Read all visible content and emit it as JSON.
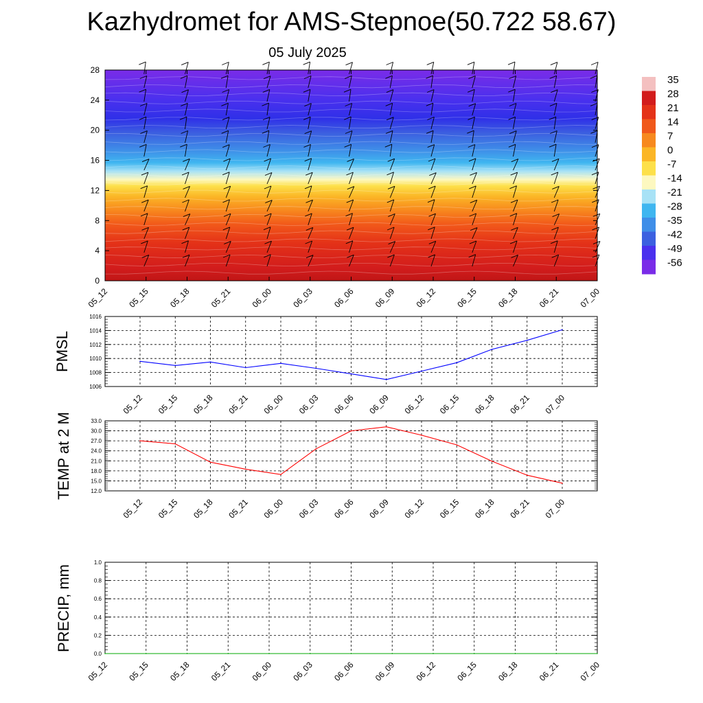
{
  "header": {
    "title": "Kazhydromet for AMS-Stepnoe(50.722 58.67)",
    "date": "05 July 2025"
  },
  "chart_data": [
    {
      "type": "heatmap",
      "x_categories": [
        "05_12",
        "05_15",
        "05_18",
        "05_21",
        "06_00",
        "06_03",
        "06_06",
        "06_09",
        "06_12",
        "06_15",
        "06_18",
        "06_21",
        "07_00"
      ],
      "yticks": [
        0,
        4,
        8,
        12,
        16,
        20,
        24,
        28
      ],
      "ylim": [
        0,
        28
      ],
      "colorbar": {
        "labels": [
          "35",
          "28",
          "21",
          "14",
          "7",
          "0",
          "-7",
          "-14",
          "-21",
          "-28",
          "-35",
          "-42",
          "-49",
          "-56"
        ],
        "colors": [
          "#f4c0c0",
          "#d21c1c",
          "#e43218",
          "#f0581a",
          "#f7891e",
          "#fbb626",
          "#fde04a",
          "#fdf8c0",
          "#a8e2f6",
          "#3fb6f0",
          "#3f8ee8",
          "#3c60e0",
          "#4a30ee",
          "#7a2ce8"
        ]
      },
      "grid": false
    },
    {
      "type": "line",
      "ylabel": "PMSL",
      "x_categories": [
        "05_12",
        "05_15",
        "05_18",
        "05_21",
        "06_00",
        "06_03",
        "06_06",
        "06_09",
        "06_12",
        "06_15",
        "06_18",
        "06_21",
        "07_00"
      ],
      "yticks": [
        "1006",
        "1008",
        "1010",
        "1012",
        "1014",
        "1016"
      ],
      "ylim": [
        1006,
        1016
      ],
      "series": [
        {
          "values": [
            1009.6,
            1009.0,
            1009.5,
            1008.7,
            1009.3,
            1008.6,
            1007.8,
            1007.0,
            1008.2,
            1009.4,
            1011.3,
            1012.6,
            1014.1
          ]
        }
      ],
      "color": "#0000ff",
      "grid": true
    },
    {
      "type": "line",
      "ylabel": "TEMP at 2 M",
      "x_categories": [
        "05_12",
        "05_15",
        "05_18",
        "05_21",
        "06_00",
        "06_03",
        "06_06",
        "06_09",
        "06_12",
        "06_15",
        "06_18",
        "06_21",
        "07_00"
      ],
      "yticks": [
        "12.0",
        "15.0",
        "18.0",
        "21.0",
        "24.0",
        "27.0",
        "30.0",
        "33.0"
      ],
      "ylim": [
        12,
        33
      ],
      "series": [
        {
          "values": [
            27.0,
            26.1,
            20.6,
            18.5,
            16.9,
            24.6,
            30.0,
            31.2,
            28.7,
            25.8,
            20.9,
            16.7,
            14.3
          ]
        }
      ],
      "color": "#ff0000",
      "grid": true
    },
    {
      "type": "line",
      "ylabel": "PRECIP, mm",
      "x_categories": [
        "05_12",
        "05_15",
        "05_18",
        "05_21",
        "06_00",
        "06_03",
        "06_06",
        "06_09",
        "06_12",
        "06_15",
        "06_18",
        "06_21",
        "07_00"
      ],
      "yticks": [
        "0.0",
        "0.2",
        "0.4",
        "0.6",
        "0.8",
        "1.0"
      ],
      "ylim": [
        0,
        1
      ],
      "series": [
        {
          "values": [
            0,
            0,
            0,
            0,
            0,
            0,
            0,
            0,
            0,
            0,
            0,
            0,
            0
          ]
        }
      ],
      "color": "#00aa00",
      "grid": true
    }
  ]
}
